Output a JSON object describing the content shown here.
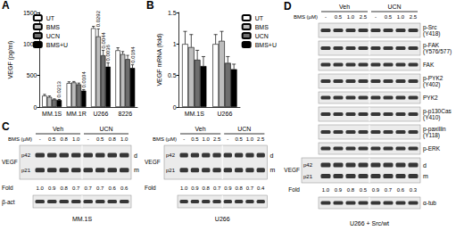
{
  "chart_data": [
    {
      "type": "bar",
      "title": "A",
      "y_label": "VEGF (pg/ml)",
      "categories": [
        "MM.1S",
        "MM.1R",
        "U266",
        "8226"
      ],
      "series": [
        {
          "name": "UT",
          "color": "#ffffff",
          "values": [
            180,
            380,
            1250,
            900
          ],
          "errors": [
            20,
            20,
            30,
            40
          ]
        },
        {
          "name": "BMS",
          "color": "#bdbdbd",
          "values": [
            160,
            390,
            1120,
            840
          ],
          "errors": [
            15,
            15,
            120,
            40
          ]
        },
        {
          "name": "UCN",
          "color": "#6e6e6e",
          "values": [
            120,
            360,
            820,
            760
          ],
          "errors": [
            10,
            20,
            80,
            60
          ]
        },
        {
          "name": "BMS+U",
          "color": "#000000",
          "values": [
            110,
            260,
            640,
            620
          ],
          "errors": [
            10,
            15,
            60,
            50
          ]
        }
      ],
      "annotations": [
        {
          "text": "0.0213",
          "category": "MM.1S",
          "series": "BMS+U"
        },
        {
          "text": "0.0104",
          "category": "MM.1R",
          "series": "BMS+U"
        },
        {
          "text": "0.0292",
          "category": "U266",
          "series": "BMS"
        },
        {
          "text": "0.0044",
          "category": "U266",
          "series": "UCN"
        },
        {
          "text": "0.0036",
          "category": "U266",
          "series": "BMS+U"
        },
        {
          "text": "0.0184",
          "category": "8226",
          "series": "BMS+U"
        }
      ],
      "ylim": [
        0,
        1500
      ],
      "yticks": [
        0,
        500,
        1000,
        1500
      ],
      "grid": false,
      "legend": "upper left"
    },
    {
      "type": "bar",
      "title": "B",
      "y_label": "VEGF mRNA (fold)",
      "categories": [
        "MM.1S",
        "U266"
      ],
      "series": [
        {
          "name": "UT",
          "color": "#ffffff",
          "values": [
            1.0,
            1.0
          ],
          "errors": [
            0.2,
            0.15
          ]
        },
        {
          "name": "BMS",
          "color": "#bdbdbd",
          "values": [
            0.95,
            1.05
          ],
          "errors": [
            0.2,
            0.15
          ]
        },
        {
          "name": "UCN",
          "color": "#6e6e6e",
          "values": [
            0.75,
            0.7
          ],
          "errors": [
            0.15,
            0.1
          ]
        },
        {
          "name": "BMS+U",
          "color": "#000000",
          "values": [
            0.65,
            0.6
          ],
          "errors": [
            0.15,
            0.08
          ]
        }
      ],
      "ylim": [
        0,
        1.5
      ],
      "yticks": [
        0,
        0.5,
        1,
        1.5
      ],
      "grid": false,
      "legend": "right"
    }
  ],
  "blots": [
    {
      "panel": "C",
      "blots": [
        {
          "name": "MM.1S",
          "groups": [
            "Veh",
            "UCN"
          ],
          "dose_label": "BMS (µM)",
          "doses": [
            "-",
            "0.5",
            "0.8",
            "1.0",
            "-",
            "0.5",
            "0.8",
            "1.0"
          ],
          "rows": [
            {
              "label": "VEGF",
              "bands": [
                "p42",
                "p21"
              ],
              "forms": [
                "d",
                "m"
              ]
            },
            {
              "label": "Fold",
              "values": [
                "1.0",
                "0.9",
                "0.8",
                "0.7",
                "0.7",
                "0.7",
                "0.6",
                "0.6"
              ]
            },
            {
              "label": "β-act"
            }
          ]
        },
        {
          "name": "U266",
          "groups": [
            "Veh",
            "UCN"
          ],
          "dose_label": "BMS (µM)",
          "doses": [
            "-",
            "0.5",
            "1.0",
            "2.5",
            "-",
            "0.5",
            "1.0",
            "2.5"
          ],
          "rows": [
            {
              "label": "VEGF",
              "bands": [
                "p42",
                "p21"
              ],
              "forms": [
                "d",
                "m"
              ]
            },
            {
              "label": "Fold",
              "values": [
                "1.0",
                "0.9",
                "0.8",
                "0.7",
                "0.9",
                "0.8",
                "0.7",
                "0.4"
              ]
            },
            {
              "label": null
            }
          ]
        }
      ]
    },
    {
      "panel": "D",
      "blots": [
        {
          "name": "U266 + Src/wt",
          "groups": [
            "Veh",
            "UCN"
          ],
          "dose_label": "BMS (µM)",
          "doses": [
            "-",
            "0.5",
            "1.0",
            "2.5",
            "-",
            "0.5",
            "1.0",
            "2.5"
          ],
          "rows": [
            {
              "label": "p-Src",
              "site": "(Y418)"
            },
            {
              "label": "p-FAK",
              "site": "(Y576/577)"
            },
            {
              "label": "FAK"
            },
            {
              "label": "p-PYK2",
              "site": "(Y402)"
            },
            {
              "label": "PYK2"
            },
            {
              "label": "p-p130Cas",
              "site": "(Y410)"
            },
            {
              "label": "p-paxillin",
              "site": "(Y118)"
            },
            {
              "label": "p-ERK"
            },
            {
              "label": "VEGF",
              "bands": [
                "p42",
                "p21"
              ],
              "forms": [
                "d",
                "m"
              ]
            },
            {
              "label": "Fold",
              "values": [
                "1.0",
                "0.9",
                "0.8",
                "0.5",
                "0.9",
                "0.7",
                "0.6",
                "0.3"
              ]
            },
            {
              "label": "α-tub"
            }
          ]
        }
      ]
    }
  ]
}
